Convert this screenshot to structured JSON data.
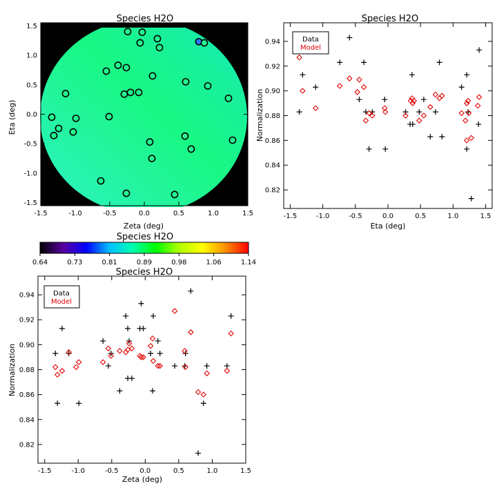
{
  "colors": {
    "data_marker": "#000000",
    "model_marker": "#e00000",
    "colorbar_stops": [
      "#000000",
      "#5a00a0",
      "#0000ff",
      "#00c0ff",
      "#00ffb0",
      "#00ff00",
      "#b0ff00",
      "#ffff00",
      "#ff9000",
      "#ff0000"
    ]
  },
  "chart_data": [
    {
      "type": "scatter",
      "title": "Species H2O",
      "xlabel": "Zeta (deg)",
      "ylabel": "Eta (deg)",
      "xlim": [
        -1.5,
        1.5
      ],
      "ylim": [
        -1.55,
        1.55
      ],
      "xticks": [
        "-1.5",
        "-1.0",
        "-0.5",
        "0.0",
        "0.5",
        "1.0",
        "1.5"
      ],
      "yticks": [
        "-1.5",
        "-1.0",
        "-0.5",
        "0.0",
        "0.5",
        "1.0",
        "1.5"
      ],
      "background": "circular field colored by normalization (≈0.86–0.93)",
      "points": [
        {
          "x": -0.24,
          "y": 1.4,
          "v": 0.89
        },
        {
          "x": -0.03,
          "y": 1.39,
          "v": 0.89
        },
        {
          "x": -0.06,
          "y": 1.21,
          "v": 0.89
        },
        {
          "x": 0.19,
          "y": 1.28,
          "v": 0.89
        },
        {
          "x": 0.22,
          "y": 1.13,
          "v": 0.89
        },
        {
          "x": 0.79,
          "y": 1.23,
          "v": 0.81
        },
        {
          "x": 0.87,
          "y": 1.21,
          "v": 0.9
        },
        {
          "x": -0.38,
          "y": 0.83,
          "v": 0.89
        },
        {
          "x": -0.55,
          "y": 0.73,
          "v": 0.89
        },
        {
          "x": -0.26,
          "y": 0.79,
          "v": 0.89
        },
        {
          "x": 0.12,
          "y": 0.65,
          "v": 0.89
        },
        {
          "x": 0.6,
          "y": 0.55,
          "v": 0.9
        },
        {
          "x": 0.92,
          "y": 0.48,
          "v": 0.9
        },
        {
          "x": -1.14,
          "y": 0.35,
          "v": 0.89
        },
        {
          "x": -0.29,
          "y": 0.34,
          "v": 0.89
        },
        {
          "x": -0.2,
          "y": 0.37,
          "v": 0.89
        },
        {
          "x": -0.08,
          "y": 0.37,
          "v": 0.89
        },
        {
          "x": 1.22,
          "y": 0.27,
          "v": 0.9
        },
        {
          "x": -1.34,
          "y": -0.05,
          "v": 0.89
        },
        {
          "x": -0.99,
          "y": -0.07,
          "v": 0.89
        },
        {
          "x": -0.51,
          "y": -0.04,
          "v": 0.89
        },
        {
          "x": -1.24,
          "y": -0.24,
          "v": 0.89
        },
        {
          "x": -1.31,
          "y": -0.36,
          "v": 0.89
        },
        {
          "x": -1.03,
          "y": -0.3,
          "v": 0.89
        },
        {
          "x": 0.59,
          "y": -0.37,
          "v": 0.9
        },
        {
          "x": 0.08,
          "y": -0.47,
          "v": 0.89
        },
        {
          "x": 1.28,
          "y": -0.44,
          "v": 0.9
        },
        {
          "x": 0.68,
          "y": -0.59,
          "v": 0.9
        },
        {
          "x": 0.11,
          "y": -0.75,
          "v": 0.89
        },
        {
          "x": -0.63,
          "y": -1.13,
          "v": 0.89
        },
        {
          "x": -0.26,
          "y": -1.34,
          "v": 0.89
        },
        {
          "x": 0.44,
          "y": -1.36,
          "v": 0.89
        }
      ]
    },
    {
      "type": "scatter",
      "title": "Species H2O",
      "xlabel": "Eta (deg)",
      "ylabel": "Normalization",
      "xlim": [
        -1.6,
        1.6
      ],
      "ylim": [
        0.805,
        0.955
      ],
      "xticks": [
        "-1.5",
        "-1.0",
        "-0.5",
        "0.0",
        "0.5",
        "1.0",
        "1.5"
      ],
      "yticks": [
        "0.82",
        "0.84",
        "0.86",
        "0.88",
        "0.90",
        "0.92",
        "0.94"
      ],
      "legend": {
        "placement": "top-left",
        "entries": [
          "Data",
          "Model"
        ]
      },
      "series": [
        {
          "name": "Data",
          "marker": "plus",
          "x": [
            -1.36,
            -1.31,
            -1.11,
            -0.74,
            -0.59,
            -0.44,
            -0.37,
            -0.34,
            -0.29,
            -0.24,
            -0.05,
            -0.04,
            0.27,
            0.34,
            0.37,
            0.38,
            0.48,
            0.55,
            0.65,
            0.73,
            0.79,
            0.83,
            1.13,
            1.21,
            1.21,
            1.23,
            1.28,
            1.4,
            1.39
          ],
          "y": [
            0.883,
            0.913,
            0.903,
            0.923,
            0.943,
            0.893,
            0.923,
            0.883,
            0.853,
            0.883,
            0.893,
            0.853,
            0.883,
            0.873,
            0.913,
            0.873,
            0.883,
            0.893,
            0.863,
            0.883,
            0.923,
            0.863,
            0.903,
            0.913,
            0.853,
            0.883,
            0.813,
            0.933,
            0.873
          ]
        },
        {
          "name": "Model",
          "marker": "diamond",
          "x": [
            -1.36,
            -1.31,
            -1.11,
            -0.74,
            -0.59,
            -0.47,
            -0.44,
            -0.37,
            -0.34,
            -0.29,
            -0.24,
            -0.05,
            -0.04,
            0.27,
            0.35,
            0.37,
            0.38,
            0.4,
            0.48,
            0.55,
            0.65,
            0.73,
            0.79,
            0.83,
            1.13,
            1.19,
            1.21,
            1.21,
            1.23,
            1.24,
            1.28,
            1.38,
            1.4
          ],
          "y": [
            0.927,
            0.9,
            0.886,
            0.904,
            0.91,
            0.899,
            0.909,
            0.903,
            0.876,
            0.882,
            0.88,
            0.886,
            0.883,
            0.88,
            0.892,
            0.894,
            0.89,
            0.892,
            0.876,
            0.88,
            0.887,
            0.897,
            0.894,
            0.896,
            0.882,
            0.876,
            0.89,
            0.86,
            0.892,
            0.882,
            0.862,
            0.888,
            0.895
          ]
        }
      ]
    },
    {
      "type": "colorbar",
      "title": "Species H2O",
      "range": [
        0.64,
        1.14
      ],
      "tick_labels": [
        "0.64",
        "0.73",
        "0.81",
        "0.89",
        "0.98",
        "1.06",
        "1.14"
      ]
    },
    {
      "type": "scatter",
      "title": "Species H2O",
      "xlabel": "Zeta (deg)",
      "ylabel": "Normalization",
      "xlim": [
        -1.6,
        1.5
      ],
      "ylim": [
        0.805,
        0.955
      ],
      "xticks": [
        "-1.5",
        "-1.0",
        "-0.5",
        "0.0",
        "0.5",
        "1.0",
        "1.5"
      ],
      "yticks": [
        "0.82",
        "0.84",
        "0.86",
        "0.88",
        "0.90",
        "0.92",
        "0.94"
      ],
      "legend": {
        "placement": "top-left",
        "entries": [
          "Data",
          "Model"
        ]
      },
      "series": [
        {
          "name": "Data",
          "marker": "plus",
          "x": [
            -1.34,
            -1.31,
            -1.24,
            -1.14,
            -0.99,
            -0.63,
            -0.55,
            -0.51,
            -0.38,
            -0.29,
            -0.26,
            -0.26,
            -0.24,
            -0.2,
            -0.08,
            -0.06,
            -0.03,
            0.08,
            0.11,
            0.12,
            0.19,
            0.22,
            0.44,
            0.59,
            0.6,
            0.68,
            0.79,
            0.87,
            0.92,
            1.22,
            1.28
          ],
          "y": [
            0.893,
            0.853,
            0.913,
            0.893,
            0.853,
            0.903,
            0.883,
            0.893,
            0.863,
            0.923,
            0.913,
            0.873,
            0.903,
            0.873,
            0.913,
            0.933,
            0.913,
            0.893,
            0.863,
            0.923,
            0.903,
            0.893,
            0.883,
            0.883,
            0.893,
            0.943,
            0.813,
            0.853,
            0.883,
            0.883,
            0.923
          ]
        },
        {
          "name": "Model",
          "marker": "diamond",
          "x": [
            -1.34,
            -1.31,
            -1.24,
            -1.14,
            -1.03,
            -0.99,
            -0.63,
            -0.55,
            -0.51,
            -0.38,
            -0.29,
            -0.26,
            -0.24,
            -0.2,
            -0.08,
            -0.06,
            -0.03,
            0.08,
            0.11,
            0.12,
            0.19,
            0.22,
            0.44,
            0.59,
            0.6,
            0.68,
            0.79,
            0.87,
            0.92,
            1.22,
            1.28
          ],
          "y": [
            0.882,
            0.876,
            0.879,
            0.894,
            0.882,
            0.886,
            0.886,
            0.897,
            0.891,
            0.895,
            0.894,
            0.896,
            0.901,
            0.897,
            0.891,
            0.89,
            0.89,
            0.899,
            0.905,
            0.887,
            0.883,
            0.883,
            0.927,
            0.895,
            0.882,
            0.91,
            0.862,
            0.86,
            0.877,
            0.879,
            0.909
          ]
        }
      ]
    }
  ]
}
